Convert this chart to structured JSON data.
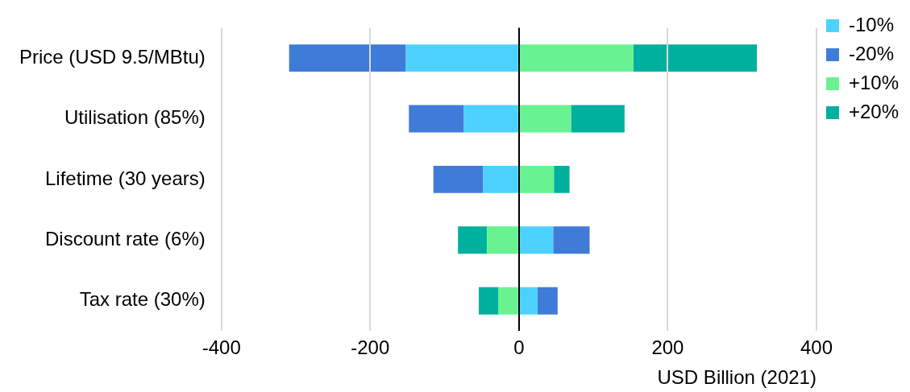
{
  "chart_data": {
    "type": "bar",
    "orientation": "horizontal",
    "stacked": true,
    "xlabel": "USD Billion (2021)",
    "categories": [
      "Price (USD 9.5/MBtu)",
      "Utilisation (85%)",
      "Lifetime (30 years)",
      "Discount rate (6%)",
      "Tax rate (30%)"
    ],
    "series": [
      {
        "name": "-10%",
        "color": "#4dd2ff",
        "values": [
          -152,
          -74,
          -48,
          46,
          25
        ]
      },
      {
        "name": "-20%",
        "color": "#3f7bd8",
        "values": [
          -157,
          -74,
          -67,
          49,
          27
        ]
      },
      {
        "name": "+10%",
        "color": "#69f291",
        "values": [
          154,
          70,
          47,
          -43,
          -28
        ]
      },
      {
        "name": "+20%",
        "color": "#00b09e",
        "values": [
          166,
          72,
          21,
          -39,
          -26
        ]
      }
    ],
    "xlim": [
      -400,
      400
    ],
    "xticks": [
      -400,
      -200,
      0,
      200,
      400
    ],
    "grid": "x",
    "legend": "right"
  }
}
